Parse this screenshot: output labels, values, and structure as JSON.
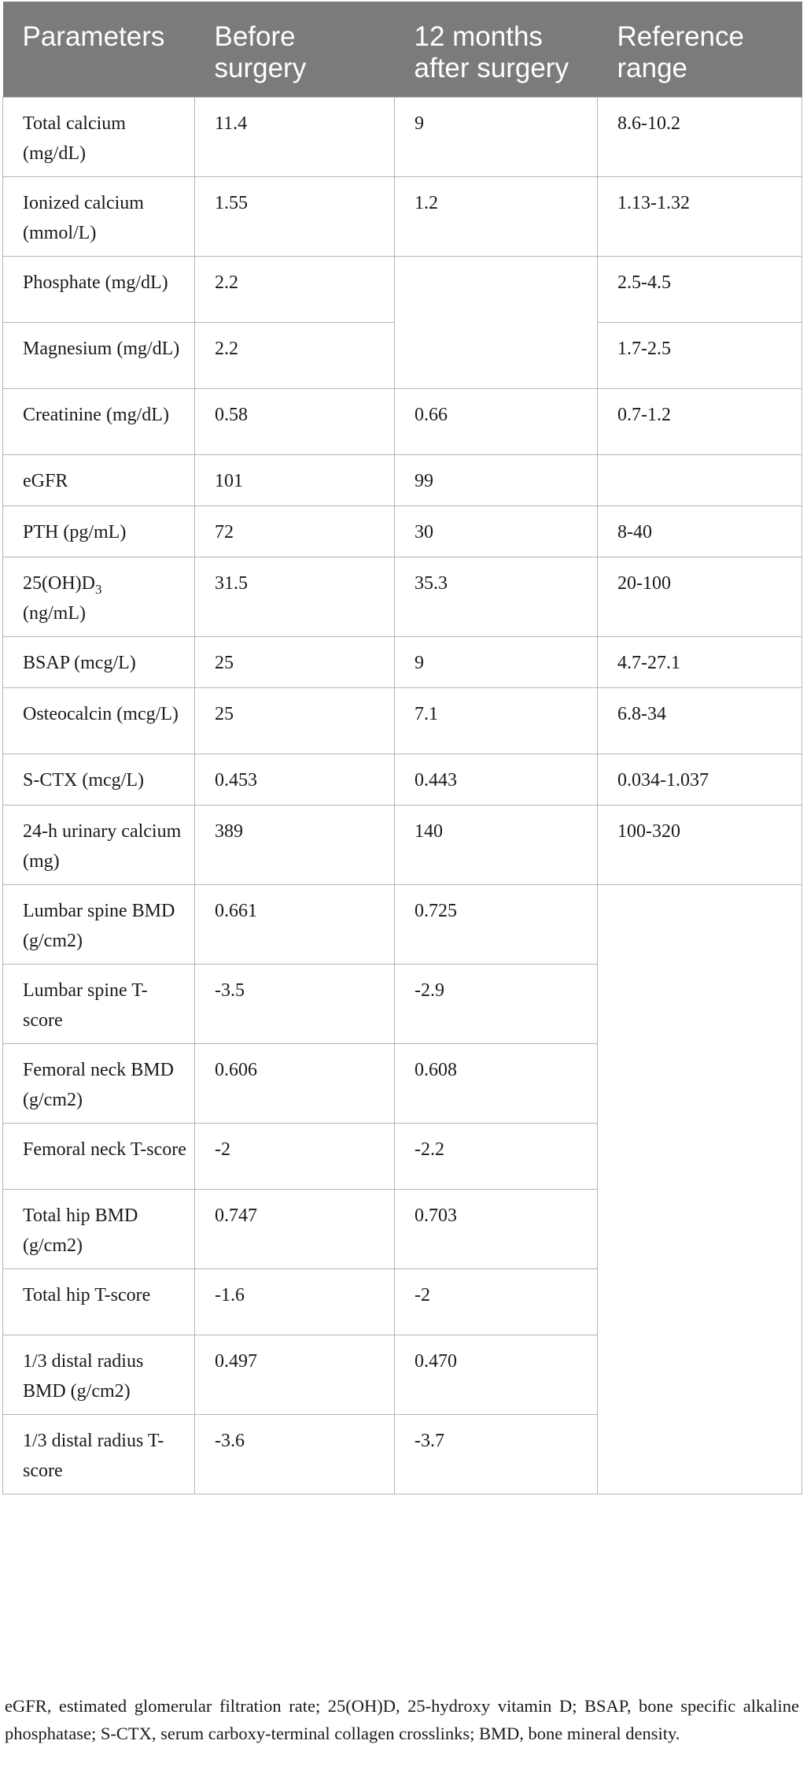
{
  "table": {
    "headers": [
      "Parameters",
      "Before surgery",
      "12 months after surgery",
      "Reference range"
    ],
    "rows": [
      {
        "param": "Total calcium (mg/dL)",
        "before": "11.4",
        "after": "9",
        "ref": "8.6-10.2"
      },
      {
        "param": "Ionized calcium (mmol/L)",
        "before": "1.55",
        "after": "1.2",
        "ref": "1.13-1.32"
      },
      {
        "param": "Phosphate (mg/dL)",
        "before": "2.2",
        "after": "",
        "ref": "2.5-4.5"
      },
      {
        "param": "Magnesium (mg/dL)",
        "before": "2.2",
        "after": "",
        "ref": "1.7-2.5"
      },
      {
        "param": "Creatinine (mg/dL)",
        "before": "0.58",
        "after": "0.66",
        "ref": "0.7-1.2"
      },
      {
        "param": "eGFR",
        "before": "101",
        "after": "99",
        "ref": ""
      },
      {
        "param": "PTH (pg/mL)",
        "before": "72",
        "after": "30",
        "ref": "8-40"
      },
      {
        "param_main": "25(OH)D",
        "param_sub": "3",
        "param_unit": "(ng/mL)",
        "before": "31.5",
        "after": "35.3",
        "ref": "20-100"
      },
      {
        "param": "BSAP (mcg/L)",
        "before": "25",
        "after": "9",
        "ref": "4.7-27.1"
      },
      {
        "param": "Osteocalcin (mcg/L)",
        "before": "25",
        "after": "7.1",
        "ref": "6.8-34"
      },
      {
        "param": "S-CTX (mcg/L)",
        "before": "0.453",
        "after": "0.443",
        "ref": "0.034-1.037"
      },
      {
        "param": "24-h urinary calcium (mg)",
        "before": "389",
        "after": "140",
        "ref": "100-320"
      },
      {
        "param": "Lumbar spine BMD (g/cm2)",
        "before": "0.661",
        "after": "0.725",
        "ref": ""
      },
      {
        "param": "Lumbar spine T-score",
        "before": "-3.5",
        "after": "-2.9",
        "ref": ""
      },
      {
        "param": "Femoral neck BMD (g/cm2)",
        "before": "0.606",
        "after": "0.608",
        "ref": ""
      },
      {
        "param": "Femoral neck T-score",
        "before": "-2",
        "after": "-2.2",
        "ref": ""
      },
      {
        "param": "Total hip BMD (g/cm2)",
        "before": "0.747",
        "after": "0.703",
        "ref": ""
      },
      {
        "param": "Total hip T-score",
        "before": "-1.6",
        "after": "-2",
        "ref": ""
      },
      {
        "param": "1/3 distal radius BMD (g/cm2)",
        "before": "0.497",
        "after": "0.470",
        "ref": ""
      },
      {
        "param": "1/3 distal radius T-score",
        "before": "-3.6",
        "after": "-3.7",
        "ref": ""
      }
    ]
  },
  "footnote": "eGFR, estimated glomerular filtration rate; 25(OH)D, 25-hydroxy vitamin D; BSAP, bone specific alkaline phosphatase; S-CTX, serum carboxy-terminal collagen crosslinks; BMD, bone mineral density."
}
